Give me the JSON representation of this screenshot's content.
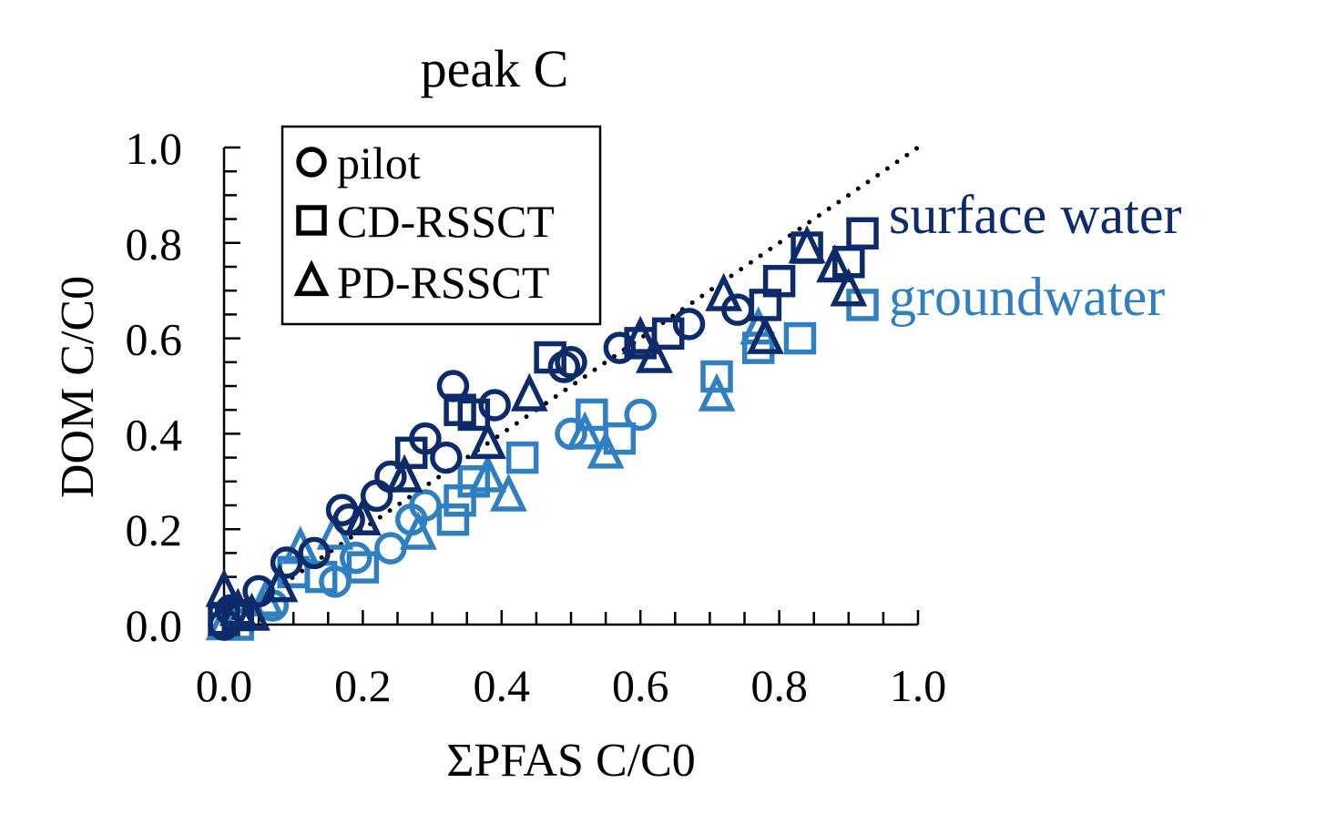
{
  "chart_data": {
    "type": "scatter",
    "title": "peak C",
    "xlabel": "ΣPFAS C/C0",
    "ylabel": "DOM C/C0",
    "xlim": [
      0,
      1
    ],
    "ylim": [
      0,
      1
    ],
    "xticks": [
      "0.0",
      "0.2",
      "0.4",
      "0.6",
      "0.8",
      "1.0"
    ],
    "yticks": [
      "0.0",
      "0.2",
      "0.4",
      "0.6",
      "0.8",
      "1.0"
    ],
    "grid": false,
    "reference_line": {
      "style": "dotted",
      "from": [
        0,
        0
      ],
      "to": [
        1,
        1
      ]
    },
    "legend": {
      "placement": "top-left",
      "entries": [
        {
          "marker": "circle",
          "label": "pilot"
        },
        {
          "marker": "square",
          "label": "CD-RSSCT"
        },
        {
          "marker": "triangle",
          "label": "PD-RSSCT"
        }
      ]
    },
    "annotations": [
      {
        "text": "surface water",
        "color": "#0d2a6b"
      },
      {
        "text": "groundwater",
        "color": "#2f7fc1"
      }
    ],
    "series": [
      {
        "color": "#0d2a6b",
        "points": [
          {
            "marker": "circle",
            "x": 0.0,
            "y": 0.0
          },
          {
            "marker": "circle",
            "x": 0.01,
            "y": 0.03
          },
          {
            "marker": "circle",
            "x": 0.05,
            "y": 0.07
          },
          {
            "marker": "circle",
            "x": 0.09,
            "y": 0.13
          },
          {
            "marker": "circle",
            "x": 0.13,
            "y": 0.15
          },
          {
            "marker": "circle",
            "x": 0.17,
            "y": 0.24
          },
          {
            "marker": "circle",
            "x": 0.18,
            "y": 0.22
          },
          {
            "marker": "circle",
            "x": 0.22,
            "y": 0.27
          },
          {
            "marker": "circle",
            "x": 0.24,
            "y": 0.31
          },
          {
            "marker": "circle",
            "x": 0.29,
            "y": 0.39
          },
          {
            "marker": "circle",
            "x": 0.32,
            "y": 0.35
          },
          {
            "marker": "circle",
            "x": 0.33,
            "y": 0.5
          },
          {
            "marker": "circle",
            "x": 0.39,
            "y": 0.46
          },
          {
            "marker": "circle",
            "x": 0.49,
            "y": 0.54
          },
          {
            "marker": "circle",
            "x": 0.5,
            "y": 0.55
          },
          {
            "marker": "circle",
            "x": 0.57,
            "y": 0.58
          },
          {
            "marker": "circle",
            "x": 0.67,
            "y": 0.63
          },
          {
            "marker": "circle",
            "x": 0.74,
            "y": 0.66
          },
          {
            "marker": "square",
            "x": 0.0,
            "y": 0.01
          },
          {
            "marker": "square",
            "x": 0.02,
            "y": 0.02
          },
          {
            "marker": "square",
            "x": 0.27,
            "y": 0.36
          },
          {
            "marker": "square",
            "x": 0.34,
            "y": 0.45
          },
          {
            "marker": "square",
            "x": 0.36,
            "y": 0.44
          },
          {
            "marker": "square",
            "x": 0.47,
            "y": 0.56
          },
          {
            "marker": "square",
            "x": 0.6,
            "y": 0.59
          },
          {
            "marker": "square",
            "x": 0.64,
            "y": 0.61
          },
          {
            "marker": "square",
            "x": 0.78,
            "y": 0.67
          },
          {
            "marker": "square",
            "x": 0.8,
            "y": 0.72
          },
          {
            "marker": "square",
            "x": 0.84,
            "y": 0.79
          },
          {
            "marker": "square",
            "x": 0.9,
            "y": 0.76
          },
          {
            "marker": "square",
            "x": 0.92,
            "y": 0.82
          },
          {
            "marker": "triangle",
            "x": 0.0,
            "y": 0.07
          },
          {
            "marker": "triangle",
            "x": 0.02,
            "y": 0.03
          },
          {
            "marker": "triangle",
            "x": 0.04,
            "y": 0.02
          },
          {
            "marker": "triangle",
            "x": 0.08,
            "y": 0.08
          },
          {
            "marker": "triangle",
            "x": 0.2,
            "y": 0.22
          },
          {
            "marker": "triangle",
            "x": 0.26,
            "y": 0.31
          },
          {
            "marker": "triangle",
            "x": 0.38,
            "y": 0.38
          },
          {
            "marker": "triangle",
            "x": 0.44,
            "y": 0.48
          },
          {
            "marker": "triangle",
            "x": 0.6,
            "y": 0.6
          },
          {
            "marker": "triangle",
            "x": 0.62,
            "y": 0.56
          },
          {
            "marker": "triangle",
            "x": 0.72,
            "y": 0.69
          },
          {
            "marker": "triangle",
            "x": 0.78,
            "y": 0.6
          },
          {
            "marker": "triangle",
            "x": 0.84,
            "y": 0.79
          },
          {
            "marker": "triangle",
            "x": 0.88,
            "y": 0.75
          },
          {
            "marker": "triangle",
            "x": 0.9,
            "y": 0.7
          }
        ]
      },
      {
        "color": "#2f7fc1",
        "points": [
          {
            "marker": "circle",
            "x": 0.0,
            "y": 0.0
          },
          {
            "marker": "circle",
            "x": 0.07,
            "y": 0.04
          },
          {
            "marker": "circle",
            "x": 0.16,
            "y": 0.09
          },
          {
            "marker": "circle",
            "x": 0.19,
            "y": 0.14
          },
          {
            "marker": "circle",
            "x": 0.24,
            "y": 0.16
          },
          {
            "marker": "circle",
            "x": 0.27,
            "y": 0.22
          },
          {
            "marker": "circle",
            "x": 0.29,
            "y": 0.25
          },
          {
            "marker": "circle",
            "x": 0.5,
            "y": 0.4
          },
          {
            "marker": "circle",
            "x": 0.6,
            "y": 0.44
          },
          {
            "marker": "square",
            "x": 0.02,
            "y": 0.0
          },
          {
            "marker": "square",
            "x": 0.1,
            "y": 0.11
          },
          {
            "marker": "square",
            "x": 0.14,
            "y": 0.1
          },
          {
            "marker": "square",
            "x": 0.2,
            "y": 0.12
          },
          {
            "marker": "square",
            "x": 0.33,
            "y": 0.22
          },
          {
            "marker": "square",
            "x": 0.34,
            "y": 0.26
          },
          {
            "marker": "square",
            "x": 0.36,
            "y": 0.3
          },
          {
            "marker": "square",
            "x": 0.43,
            "y": 0.35
          },
          {
            "marker": "square",
            "x": 0.53,
            "y": 0.44
          },
          {
            "marker": "square",
            "x": 0.57,
            "y": 0.39
          },
          {
            "marker": "square",
            "x": 0.71,
            "y": 0.52
          },
          {
            "marker": "square",
            "x": 0.77,
            "y": 0.58
          },
          {
            "marker": "square",
            "x": 0.83,
            "y": 0.6
          },
          {
            "marker": "square",
            "x": 0.92,
            "y": 0.67
          },
          {
            "marker": "triangle",
            "x": 0.0,
            "y": 0.0
          },
          {
            "marker": "triangle",
            "x": 0.06,
            "y": 0.05
          },
          {
            "marker": "triangle",
            "x": 0.11,
            "y": 0.16
          },
          {
            "marker": "triangle",
            "x": 0.16,
            "y": 0.19
          },
          {
            "marker": "triangle",
            "x": 0.28,
            "y": 0.19
          },
          {
            "marker": "triangle",
            "x": 0.38,
            "y": 0.31
          },
          {
            "marker": "triangle",
            "x": 0.41,
            "y": 0.27
          },
          {
            "marker": "triangle",
            "x": 0.52,
            "y": 0.4
          },
          {
            "marker": "triangle",
            "x": 0.55,
            "y": 0.36
          },
          {
            "marker": "triangle",
            "x": 0.71,
            "y": 0.48
          },
          {
            "marker": "triangle",
            "x": 0.77,
            "y": 0.62
          }
        ]
      }
    ]
  }
}
